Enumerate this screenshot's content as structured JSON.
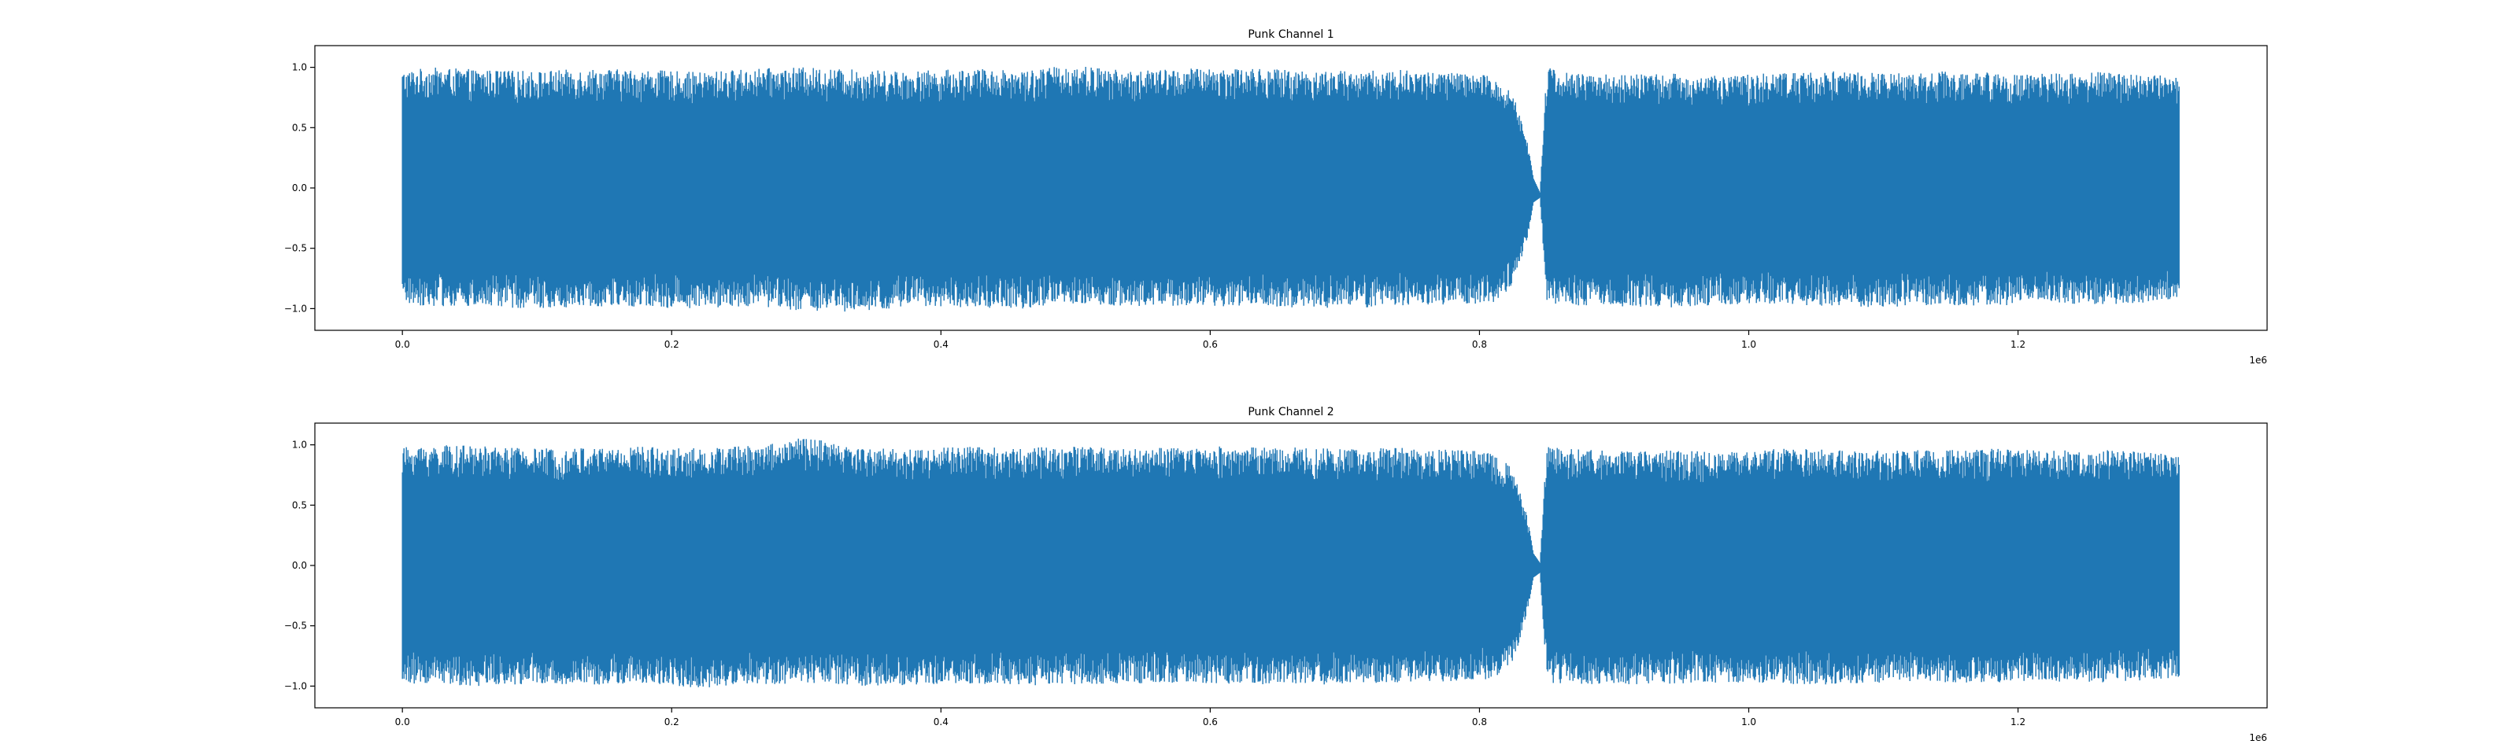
{
  "colors": {
    "series": "#1f77b4",
    "axis": "#000000",
    "background": "#ffffff"
  },
  "chart_data": [
    {
      "type": "line",
      "title": "Punk Channel 1",
      "xlabel": "",
      "ylabel": "",
      "x_offset_label": "1e6",
      "xlim": [
        -65000,
        1385000
      ],
      "ylim": [
        -1.18,
        1.18
      ],
      "xticks": [
        0.0,
        0.2,
        0.4,
        0.6,
        0.8,
        1.0,
        1.2
      ],
      "xtick_labels": [
        "0.0",
        "0.2",
        "0.4",
        "0.6",
        "0.8",
        "1.0",
        "1.2"
      ],
      "yticks": [
        -1.0,
        -0.5,
        0.0,
        0.5,
        1.0
      ],
      "ytick_labels": [
        "−1.0",
        "−0.5",
        "0.0",
        "0.5",
        "1.0"
      ],
      "grid": false,
      "legend": "none",
      "series": [
        {
          "x": [
            0,
            20000,
            60000,
            100000,
            140000,
            180000,
            220000,
            260000,
            300000,
            340000,
            380000,
            420000,
            460000,
            500000,
            540000,
            580000,
            620000,
            660000,
            700000,
            740000,
            780000,
            810000,
            825000,
            835000,
            840000,
            845000,
            850000,
            860000,
            900000,
            940000,
            980000,
            1020000,
            1060000,
            1100000,
            1140000,
            1180000,
            1220000,
            1260000,
            1300000,
            1320000
          ],
          "upper": [
            0.97,
            1.0,
            0.98,
            0.97,
            0.99,
            0.98,
            0.96,
            0.99,
            1.0,
            0.98,
            0.97,
            0.99,
            0.98,
            1.02,
            0.97,
            0.99,
            1.0,
            0.98,
            0.97,
            0.98,
            0.96,
            0.93,
            0.78,
            0.42,
            0.08,
            -0.04,
            1.02,
            0.96,
            0.94,
            0.95,
            0.93,
            0.96,
            0.97,
            0.95,
            0.97,
            0.96,
            0.95,
            0.96,
            0.95,
            0.92
          ],
          "lower": [
            -0.96,
            -0.98,
            -0.99,
            -1.0,
            -0.98,
            -0.99,
            -1.0,
            -0.98,
            -1.02,
            -1.04,
            -0.98,
            -0.99,
            -1.0,
            -0.97,
            -0.98,
            -0.99,
            -0.98,
            -0.99,
            -1.0,
            -0.98,
            -0.97,
            -0.95,
            -0.82,
            -0.46,
            -0.12,
            -0.08,
            -0.96,
            -0.97,
            -0.98,
            -0.99,
            -0.97,
            -0.96,
            -0.98,
            -0.99,
            -0.97,
            -0.98,
            -0.96,
            -0.97,
            -0.95,
            -0.93
          ]
        }
      ]
    },
    {
      "type": "line",
      "title": "Punk Channel 2",
      "xlabel": "",
      "ylabel": "",
      "x_offset_label": "1e6",
      "xlim": [
        -65000,
        1385000
      ],
      "ylim": [
        -1.18,
        1.18
      ],
      "xticks": [
        0.0,
        0.2,
        0.4,
        0.6,
        0.8,
        1.0,
        1.2
      ],
      "xtick_labels": [
        "0.0",
        "0.2",
        "0.4",
        "0.6",
        "0.8",
        "1.0",
        "1.2"
      ],
      "yticks": [
        -1.0,
        -0.5,
        0.0,
        0.5,
        1.0
      ],
      "ytick_labels": [
        "−1.0",
        "−0.5",
        "0.0",
        "0.5",
        "1.0"
      ],
      "grid": false,
      "legend": "none",
      "series": [
        {
          "x": [
            0,
            20000,
            60000,
            100000,
            140000,
            180000,
            220000,
            260000,
            300000,
            340000,
            380000,
            420000,
            460000,
            500000,
            540000,
            580000,
            620000,
            660000,
            700000,
            740000,
            780000,
            810000,
            825000,
            835000,
            840000,
            845000,
            850000,
            860000,
            900000,
            940000,
            980000,
            1020000,
            1060000,
            1100000,
            1140000,
            1180000,
            1220000,
            1260000,
            1300000,
            1320000
          ],
          "upper": [
            0.98,
            1.0,
            0.99,
            0.97,
            0.98,
            0.99,
            0.97,
            1.0,
            1.06,
            0.98,
            0.97,
            0.99,
            0.98,
            0.99,
            0.97,
            0.98,
            0.99,
            0.98,
            0.97,
            0.98,
            0.96,
            0.94,
            0.8,
            0.44,
            0.1,
            0.02,
            1.02,
            0.97,
            0.95,
            0.96,
            0.94,
            0.97,
            0.96,
            0.95,
            0.96,
            0.97,
            0.95,
            0.96,
            0.94,
            0.92
          ],
          "lower": [
            -0.97,
            -0.99,
            -1.0,
            -0.98,
            -0.99,
            -0.98,
            -1.02,
            -0.99,
            -0.98,
            -1.0,
            -0.99,
            -0.98,
            -0.99,
            -1.0,
            -0.98,
            -0.97,
            -0.99,
            -0.98,
            -0.99,
            -0.97,
            -0.96,
            -0.94,
            -0.8,
            -0.42,
            -0.1,
            -0.06,
            -0.97,
            -0.98,
            -0.99,
            -0.98,
            -0.97,
            -0.98,
            -0.99,
            -0.97,
            -0.98,
            -0.97,
            -0.96,
            -0.97,
            -0.95,
            -0.93
          ]
        }
      ]
    }
  ]
}
